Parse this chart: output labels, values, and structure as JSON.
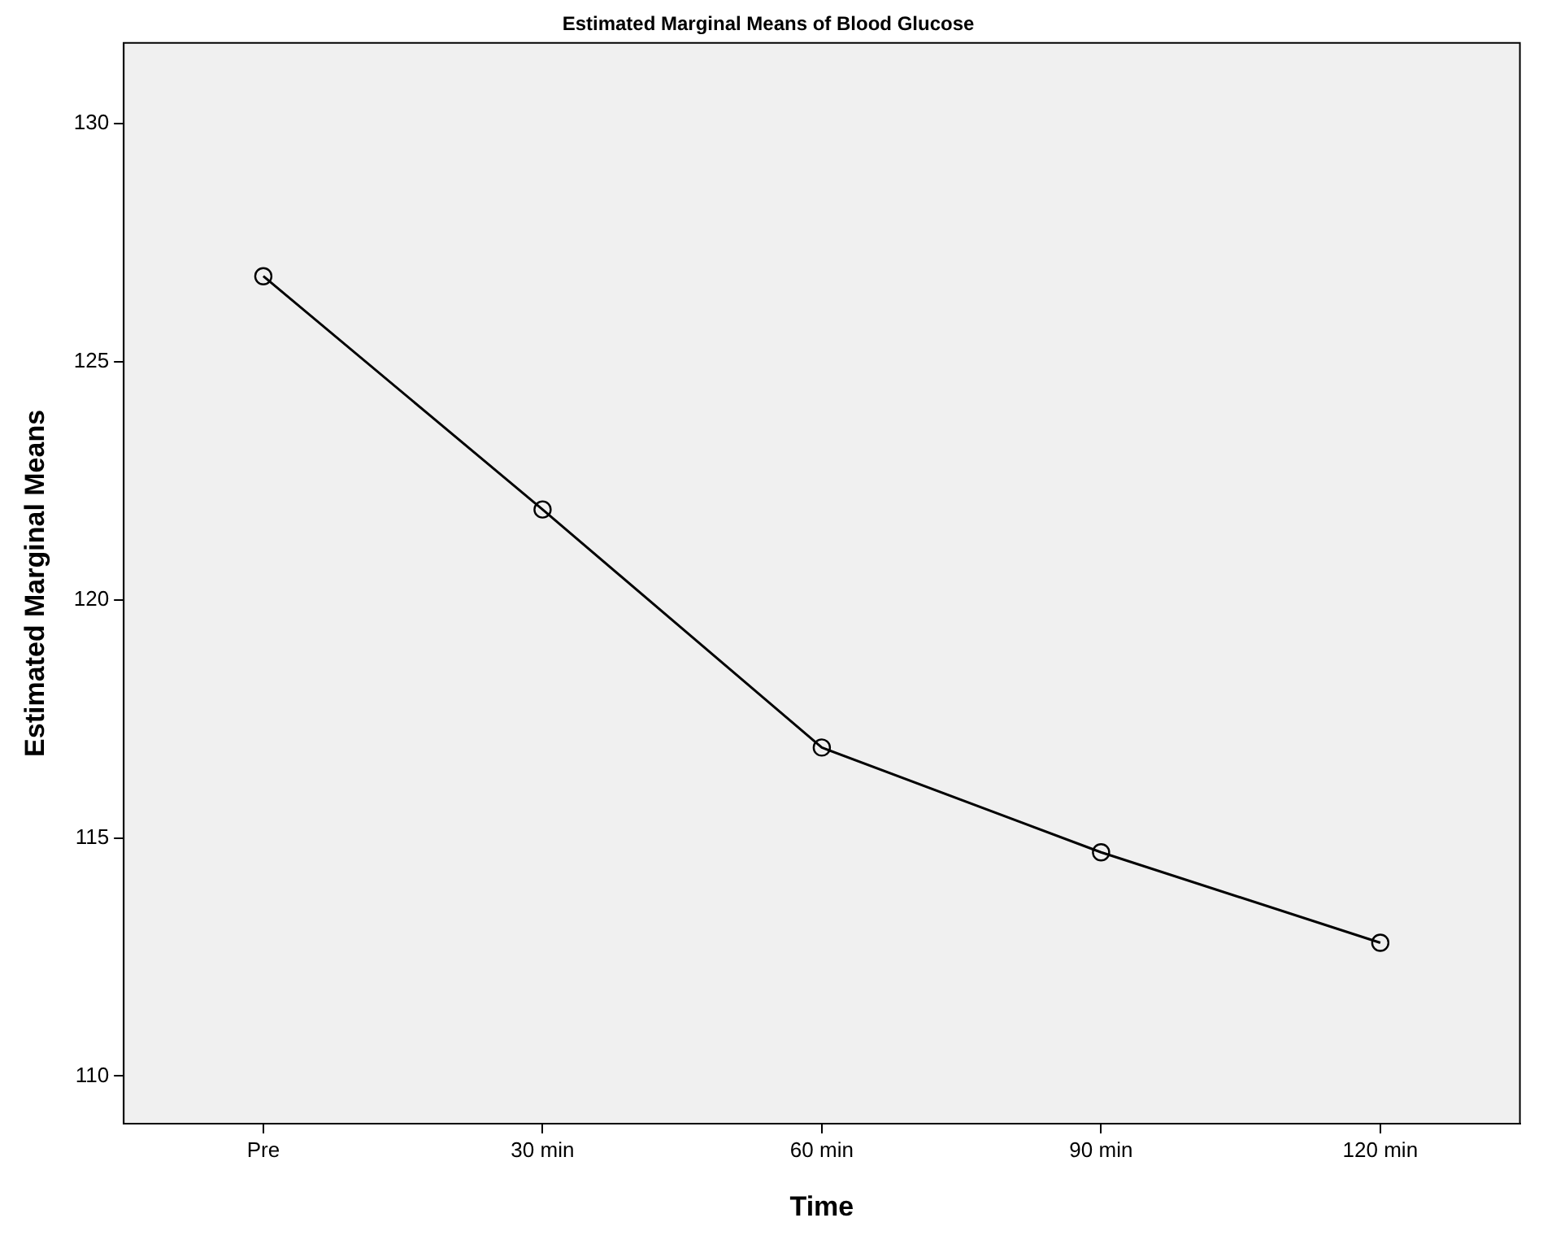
{
  "chart_data": {
    "type": "line",
    "title": "Estimated Marginal Means of Blood Glucose",
    "xlabel": "Time",
    "ylabel": "Estimated Marginal Means",
    "categories": [
      "Pre",
      "30 min",
      "60 min",
      "90 min",
      "120 min"
    ],
    "series": [
      {
        "color": "#000000",
        "values": [
          126.8,
          121.9,
          116.9,
          114.7,
          112.8
        ]
      }
    ],
    "ylim": [
      109,
      131.7
    ],
    "yticks": [
      110,
      115,
      120,
      125,
      130
    ],
    "grid": false,
    "legend": false,
    "marker": "circle",
    "line_style": "solid"
  }
}
